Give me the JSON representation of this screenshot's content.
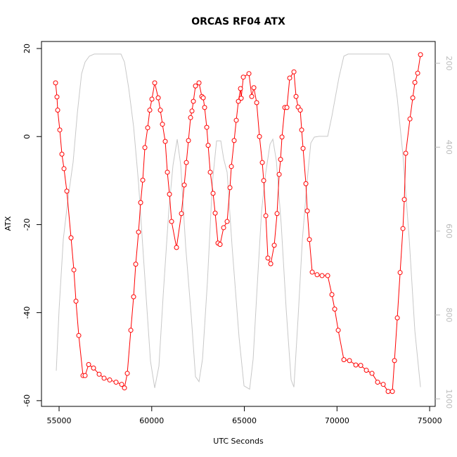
{
  "chart_data": {
    "type": "line",
    "title": "ORCAS RF04 ATX",
    "xlabel": "UTC Seconds",
    "ylabel": "ATX",
    "xlim": [
      54050,
      75300
    ],
    "xticks": [
      55000,
      60000,
      65000,
      70000,
      75000
    ],
    "ylim": [
      -61.3,
      21.6
    ],
    "yticks": [
      -60,
      -40,
      -20,
      0,
      20
    ],
    "y2lim": [
      1018,
      148
    ],
    "y2ticks": [
      200,
      400,
      600,
      800,
      1000
    ],
    "series": [
      {
        "color": "#ff0000",
        "markers": true,
        "x": [
          54810,
          54886,
          54924,
          55038,
          55152,
          55265,
          55417,
          55645,
          55797,
          55911,
          56062,
          56290,
          56404,
          56594,
          56859,
          57163,
          57429,
          57732,
          58074,
          58377,
          58529,
          58681,
          58871,
          59022,
          59136,
          59288,
          59402,
          59516,
          59630,
          59781,
          59895,
          60009,
          60161,
          60351,
          60465,
          60578,
          60730,
          60844,
          60958,
          61072,
          61337,
          61603,
          61755,
          61869,
          61983,
          62096,
          62172,
          62248,
          62362,
          62552,
          62704,
          62780,
          62855,
          62969,
          63045,
          63159,
          63311,
          63425,
          63576,
          63690,
          63880,
          64070,
          64222,
          64298,
          64449,
          64563,
          64677,
          64791,
          64829,
          64943,
          65246,
          65398,
          65512,
          65664,
          65816,
          65967,
          66043,
          66157,
          66271,
          66423,
          66612,
          66764,
          66878,
          66954,
          67030,
          67182,
          67296,
          67447,
          67675,
          67789,
          67903,
          68017,
          68093,
          68168,
          68320,
          68396,
          68510,
          68662,
          68927,
          69193,
          69497,
          69724,
          69876,
          70066,
          70370,
          70673,
          71015,
          71280,
          71584,
          71888,
          72191,
          72495,
          72760,
          72988,
          73102,
          73254,
          73406,
          73557,
          73633,
          73709,
          73937,
          74089,
          74202,
          74354,
          74506
        ],
        "values": [
          12.2,
          9.0,
          6.0,
          1.5,
          -4,
          -7.3,
          -12.4,
          -23,
          -30.3,
          -37.4,
          -45.2,
          -54.3,
          -54.3,
          -51.8,
          -52.6,
          -54,
          -54.9,
          -55.3,
          -55.8,
          -56.3,
          -57.1,
          -53.8,
          -44,
          -36.4,
          -29,
          -21.7,
          -15,
          -9.9,
          -2.5,
          2,
          6,
          8.5,
          12.2,
          8.8,
          6,
          2.8,
          -1.1,
          -8.1,
          -13.1,
          -19.3,
          -25.2,
          -17.5,
          -11,
          -5.9,
          -0.9,
          4.3,
          5.8,
          8,
          11.5,
          12.2,
          9.1,
          8.8,
          6.6,
          2.1,
          -2,
          -8.1,
          -12.9,
          -17.4,
          -24.2,
          -24.5,
          -20.7,
          -19.3,
          -11.6,
          -6.8,
          -0.9,
          3.7,
          8,
          10.9,
          8.7,
          13.5,
          14.3,
          9.1,
          11.1,
          7.7,
          0.0,
          -5.9,
          -10,
          -18,
          -27.6,
          -28.9,
          -24.7,
          -17.5,
          -8.6,
          -5.2,
          -0.1,
          6.6,
          6.6,
          13.3,
          14.7,
          9.1,
          6.7,
          6,
          1.5,
          -2.7,
          -10.7,
          -16.9,
          -23.4,
          -30.8,
          -31.4,
          -31.6,
          -31.6,
          -35.9,
          -39.2,
          -44,
          -50.7,
          -50.9,
          -51.9,
          -52,
          -53.1,
          -53.8,
          -55.8,
          -56.3,
          -57.9,
          -57.9,
          -50.9,
          -41.2,
          -30.9,
          -20.9,
          -14.3,
          -3.8,
          4,
          8.8,
          12.3,
          14.4,
          18.6
        ]
      },
      {
        "color": "#c8c8c8",
        "axis": "y2",
        "markers": false,
        "x": [
          54848,
          55000,
          55227,
          55493,
          55759,
          55987,
          56214,
          56404,
          56632,
          56897,
          58339,
          58529,
          58757,
          59022,
          59288,
          59592,
          59933,
          60161,
          60389,
          60617,
          60920,
          61148,
          61376,
          61566,
          61831,
          62135,
          62362,
          62552,
          62742,
          63007,
          63273,
          63500,
          63728,
          63880,
          64070,
          64336,
          64715,
          64981,
          65284,
          65474,
          65664,
          65930,
          66157,
          66385,
          66537,
          66726,
          66992,
          67258,
          67524,
          67675,
          67903,
          68131,
          68396,
          68586,
          68776,
          69041,
          69497,
          69724,
          70104,
          70370,
          70597,
          72798,
          72988,
          73254,
          73557,
          73899,
          74202,
          74506
        ],
        "values": [
          933,
          787,
          620,
          519,
          435,
          318,
          225,
          197,
          183,
          178,
          178,
          197,
          259,
          351,
          485,
          687,
          910,
          974,
          922,
          754,
          552,
          443,
          381,
          443,
          636,
          804,
          947,
          959,
          905,
          720,
          485,
          385,
          385,
          427,
          460,
          636,
          854,
          969,
          977,
          905,
          754,
          552,
          460,
          393,
          381,
          432,
          586,
          787,
          955,
          972,
          804,
          620,
          477,
          390,
          376,
          374,
          374,
          326,
          234,
          183,
          178,
          178,
          197,
          284,
          418,
          620,
          838,
          972
        ]
      }
    ]
  }
}
